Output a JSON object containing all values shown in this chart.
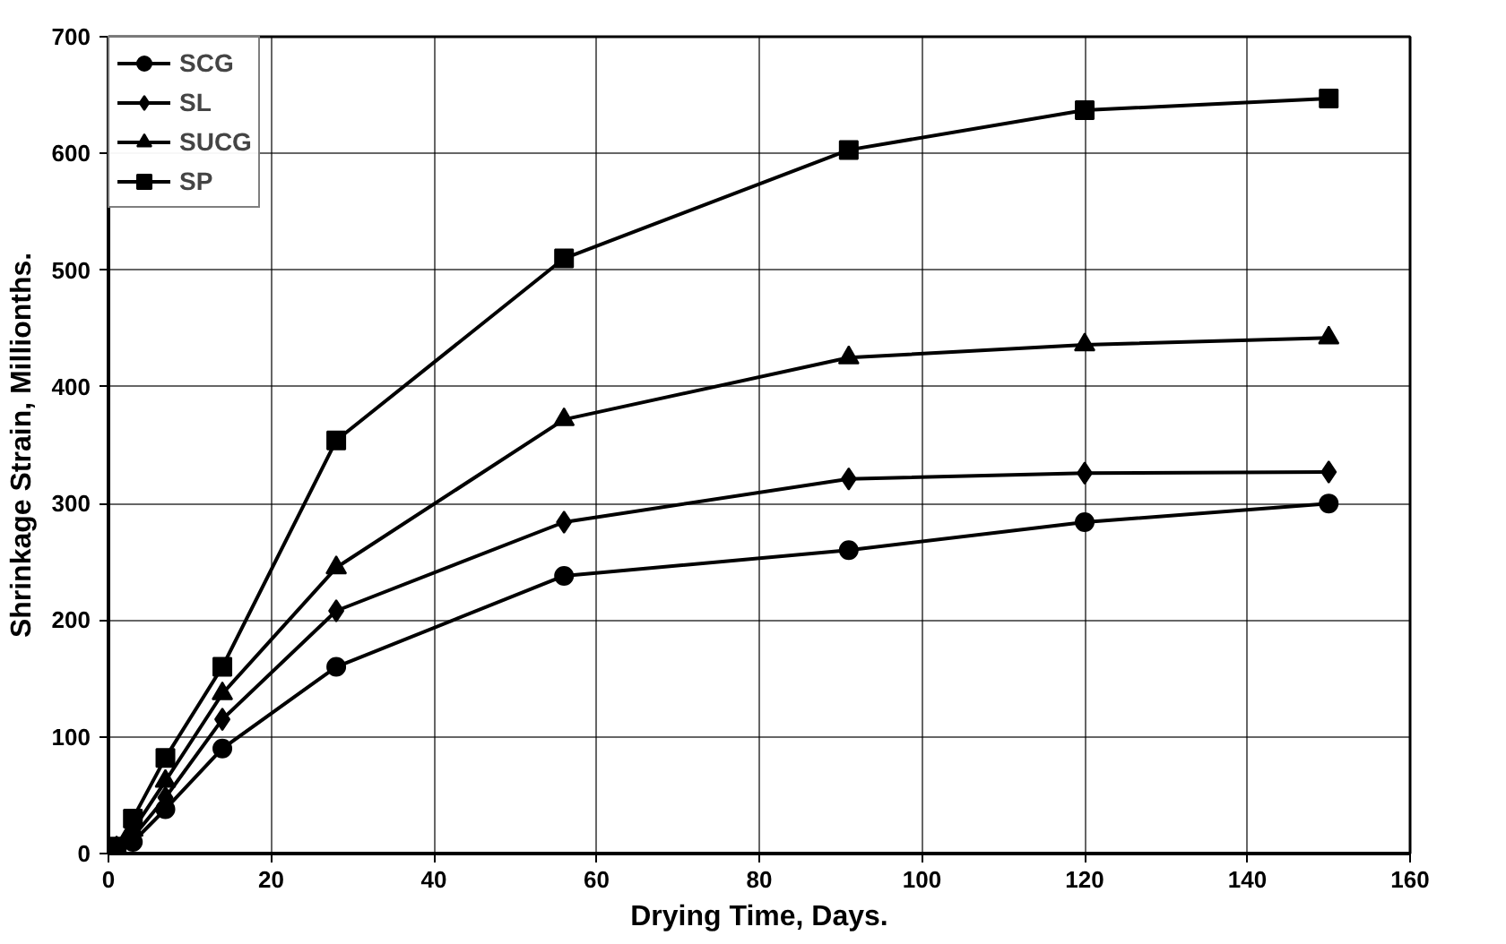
{
  "chart_data": {
    "type": "line",
    "xlabel": "Drying Time, Days.",
    "ylabel": "Shrinkage Strain, Millionths.",
    "x": [
      1,
      3,
      7,
      14,
      28,
      56,
      91,
      120,
      150
    ],
    "series": [
      {
        "name": "SCG",
        "color": "#000000",
        "marker": "circle",
        "values": [
          3,
          10,
          38,
          90,
          160,
          238,
          260,
          284,
          300
        ]
      },
      {
        "name": "SL",
        "color": "#000000",
        "marker": "diamond",
        "values": [
          4,
          14,
          48,
          115,
          208,
          284,
          321,
          326,
          327
        ]
      },
      {
        "name": "SUCG",
        "color": "#000000",
        "marker": "triangle",
        "values": [
          5,
          20,
          62,
          137,
          245,
          372,
          425,
          436,
          442
        ]
      },
      {
        "name": "SP",
        "color": "#000000",
        "marker": "square",
        "values": [
          6,
          30,
          82,
          160,
          354,
          510,
          603,
          637,
          647
        ]
      }
    ],
    "xlim": [
      0,
      160
    ],
    "xticks": [
      0,
      20,
      40,
      60,
      80,
      100,
      120,
      140,
      160
    ],
    "ylim": [
      0,
      700
    ],
    "yticks": [
      0,
      100,
      200,
      300,
      400,
      500,
      600,
      700
    ],
    "grid": true,
    "legend": "top left",
    "line_style": "solid"
  }
}
